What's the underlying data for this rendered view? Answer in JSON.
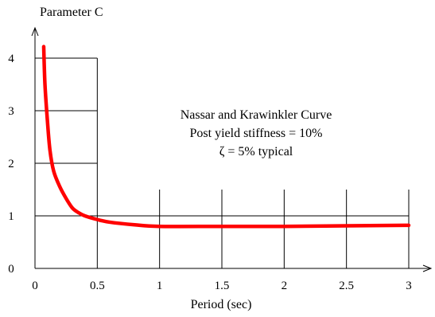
{
  "chart_data": {
    "type": "line",
    "ylabel": "Parameter C",
    "xlabel": "Period (sec)",
    "annotations": [
      "Nassar and Krawinkler Curve",
      "Post yield stiffness = 10%",
      "ζ = 5% typical"
    ],
    "xlim": [
      0,
      3.2
    ],
    "ylim": [
      0,
      4.55
    ],
    "x_ticks": [
      0,
      0.5,
      1,
      1.5,
      2,
      2.5,
      3
    ],
    "x_tick_labels": [
      "0",
      "0.5",
      "1",
      "1.5",
      "2",
      "2.5",
      "3"
    ],
    "y_ticks": [
      0,
      1,
      2,
      3,
      4
    ],
    "y_tick_labels": [
      "0",
      "1",
      "2",
      "3",
      "4"
    ],
    "grid": "partial",
    "series": [
      {
        "color": "#ff0000",
        "x": [
          0.07,
          0.08,
          0.1,
          0.12,
          0.15,
          0.2,
          0.25,
          0.3,
          0.35,
          0.4,
          0.5,
          0.6,
          0.8,
          1.0,
          1.5,
          2.0,
          2.5,
          3.0
        ],
        "y": [
          4.22,
          3.5,
          2.8,
          2.25,
          1.85,
          1.55,
          1.33,
          1.15,
          1.06,
          1.0,
          0.93,
          0.88,
          0.83,
          0.8,
          0.8,
          0.8,
          0.81,
          0.82
        ]
      }
    ]
  }
}
